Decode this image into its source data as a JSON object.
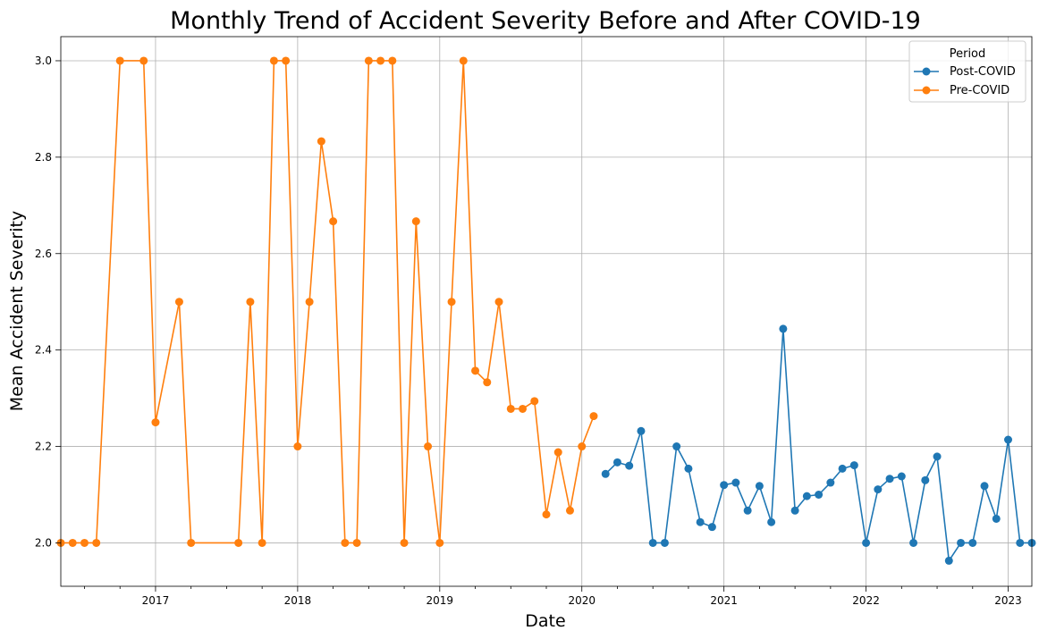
{
  "chart_data": {
    "type": "line",
    "title": "Monthly Trend of Accident Severity Before and After COVID-19",
    "xlabel": "Date",
    "ylabel": "Mean Accident Severity",
    "xlim": [
      "2016-05",
      "2023-03"
    ],
    "ylim": [
      1.91,
      3.05
    ],
    "x_ticks": [
      "2017",
      "2018",
      "2019",
      "2020",
      "2021",
      "2022",
      "2023"
    ],
    "y_ticks": [
      "2.0",
      "2.2",
      "2.4",
      "2.6",
      "2.8",
      "3.0"
    ],
    "grid": true,
    "legend": {
      "title": "Period",
      "placement": "top-right"
    },
    "series": [
      {
        "name": "Post-COVID",
        "color": "#1f77b4",
        "points": [
          [
            "2020-03",
            2.143
          ],
          [
            "2020-04",
            2.167
          ],
          [
            "2020-05",
            2.16
          ],
          [
            "2020-06",
            2.232
          ],
          [
            "2020-07",
            2.0
          ],
          [
            "2020-08",
            2.0
          ],
          [
            "2020-09",
            2.2
          ],
          [
            "2020-10",
            2.154
          ],
          [
            "2020-11",
            2.043
          ],
          [
            "2020-12",
            2.033
          ],
          [
            "2021-01",
            2.12
          ],
          [
            "2021-02",
            2.125
          ],
          [
            "2021-03",
            2.067
          ],
          [
            "2021-04",
            2.118
          ],
          [
            "2021-05",
            2.043
          ],
          [
            "2021-06",
            2.444
          ],
          [
            "2021-07",
            2.067
          ],
          [
            "2021-08",
            2.097
          ],
          [
            "2021-09",
            2.1
          ],
          [
            "2021-10",
            2.125
          ],
          [
            "2021-11",
            2.154
          ],
          [
            "2021-12",
            2.161
          ],
          [
            "2022-01",
            2.0
          ],
          [
            "2022-02",
            2.111
          ],
          [
            "2022-03",
            2.133
          ],
          [
            "2022-04",
            2.138
          ],
          [
            "2022-05",
            2.0
          ],
          [
            "2022-06",
            2.13
          ],
          [
            "2022-07",
            2.179
          ],
          [
            "2022-08",
            1.963
          ],
          [
            "2022-09",
            2.0
          ],
          [
            "2022-10",
            2.0
          ],
          [
            "2022-11",
            2.118
          ],
          [
            "2022-12",
            2.05
          ],
          [
            "2023-01",
            2.214
          ],
          [
            "2023-02",
            2.0
          ],
          [
            "2023-03",
            2.0
          ]
        ]
      },
      {
        "name": "Pre-COVID",
        "color": "#ff7f0e",
        "points": [
          [
            "2016-05",
            2.0
          ],
          [
            "2016-06",
            2.0
          ],
          [
            "2016-07",
            2.0
          ],
          [
            "2016-08",
            2.0
          ],
          [
            "2016-10",
            3.0
          ],
          [
            "2016-12",
            3.0
          ],
          [
            "2017-01",
            2.25
          ],
          [
            "2017-03",
            2.5
          ],
          [
            "2017-04",
            2.0
          ],
          [
            "2017-08",
            2.0
          ],
          [
            "2017-09",
            2.5
          ],
          [
            "2017-10",
            2.0
          ],
          [
            "2017-11",
            3.0
          ],
          [
            "2017-12",
            3.0
          ],
          [
            "2018-01",
            2.2
          ],
          [
            "2018-02",
            2.5
          ],
          [
            "2018-03",
            2.833
          ],
          [
            "2018-04",
            2.667
          ],
          [
            "2018-05",
            2.0
          ],
          [
            "2018-06",
            2.0
          ],
          [
            "2018-07",
            3.0
          ],
          [
            "2018-08",
            3.0
          ],
          [
            "2018-09",
            3.0
          ],
          [
            "2018-10",
            2.0
          ],
          [
            "2018-11",
            2.667
          ],
          [
            "2018-12",
            2.2
          ],
          [
            "2019-01",
            2.0
          ],
          [
            "2019-02",
            2.5
          ],
          [
            "2019-03",
            3.0
          ],
          [
            "2019-04",
            2.357
          ],
          [
            "2019-05",
            2.333
          ],
          [
            "2019-06",
            2.5
          ],
          [
            "2019-07",
            2.278
          ],
          [
            "2019-08",
            2.278
          ],
          [
            "2019-09",
            2.294
          ],
          [
            "2019-10",
            2.059
          ],
          [
            "2019-11",
            2.188
          ],
          [
            "2019-12",
            2.067
          ],
          [
            "2020-01",
            2.2
          ],
          [
            "2020-02",
            2.263
          ]
        ]
      }
    ]
  }
}
